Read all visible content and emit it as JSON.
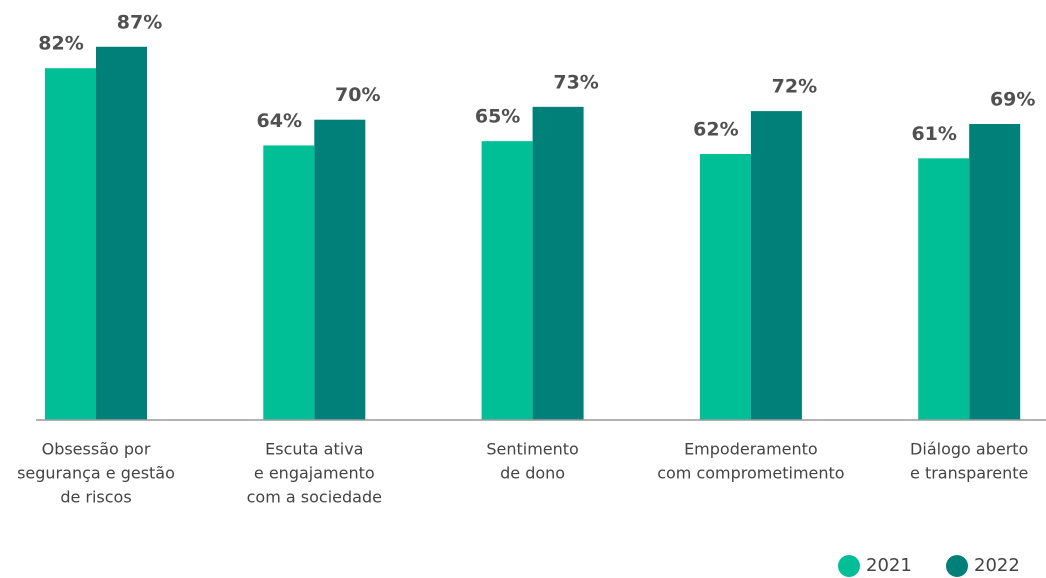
{
  "chart_data": {
    "type": "bar",
    "categories": [
      [
        "Obsessão por",
        "segurança e gestão",
        "de riscos"
      ],
      [
        "Escuta ativa",
        "e engajamento",
        "com a sociedade"
      ],
      [
        "Sentimento",
        "de dono"
      ],
      [
        "Empoderamento",
        "com comprometimento"
      ],
      [
        "Diálogo aberto",
        "e transparente"
      ]
    ],
    "series": [
      {
        "name": "2021",
        "color": "#00bf97",
        "values": [
          82,
          64,
          65,
          62,
          61
        ],
        "value_labels": [
          "82%",
          "64%",
          "65%",
          "62%",
          "61%"
        ]
      },
      {
        "name": "2022",
        "color": "#008078",
        "values": [
          87,
          70,
          73,
          72,
          69
        ],
        "value_labels": [
          "87%",
          "70%",
          "73%",
          "72%",
          "69%"
        ]
      }
    ],
    "ylim": [
      0,
      100
    ],
    "legend": "bottom-right"
  }
}
